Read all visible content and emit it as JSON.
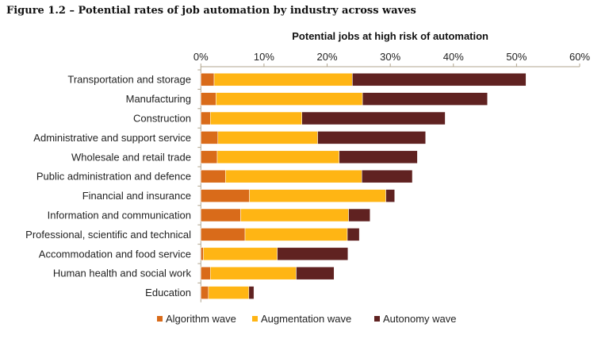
{
  "figure_title": "Figure 1.2 – Potential rates of job automation by industry across waves",
  "chart_data": {
    "type": "bar",
    "orientation": "horizontal",
    "stacked": true,
    "title": "Potential jobs at high risk of automation",
    "xlabel": "",
    "ylabel": "",
    "xlim": [
      0,
      60
    ],
    "xticks": [
      "0%",
      "10%",
      "20%",
      "30%",
      "40%",
      "50%",
      "60%"
    ],
    "categories": [
      "Transportation and storage",
      "Manufacturing",
      "Construction",
      "Administrative and support service",
      "Wholesale and retail trade",
      "Public administration and defence",
      "Financial and insurance",
      "Information and communication",
      "Professional, scientific and technical",
      "Accommodation and food service",
      "Human health and social work",
      "Education"
    ],
    "series": [
      {
        "name": "Algorithm wave",
        "color": "#D96B1A",
        "values": [
          2.1,
          2.4,
          1.5,
          2.7,
          2.6,
          3.9,
          7.7,
          6.3,
          7.0,
          0.4,
          1.5,
          1.2
        ]
      },
      {
        "name": "Augmentation wave",
        "color": "#FFB514",
        "values": [
          21.9,
          23.2,
          14.5,
          15.8,
          19.3,
          21.6,
          21.6,
          17.1,
          16.2,
          11.7,
          13.6,
          6.4
        ]
      },
      {
        "name": "Autonomy wave",
        "color": "#602221",
        "values": [
          27.5,
          19.8,
          22.7,
          17.1,
          12.4,
          8.0,
          1.4,
          3.4,
          1.9,
          11.2,
          6.0,
          0.8
        ]
      }
    ],
    "legend": "bottom",
    "grid": false
  }
}
